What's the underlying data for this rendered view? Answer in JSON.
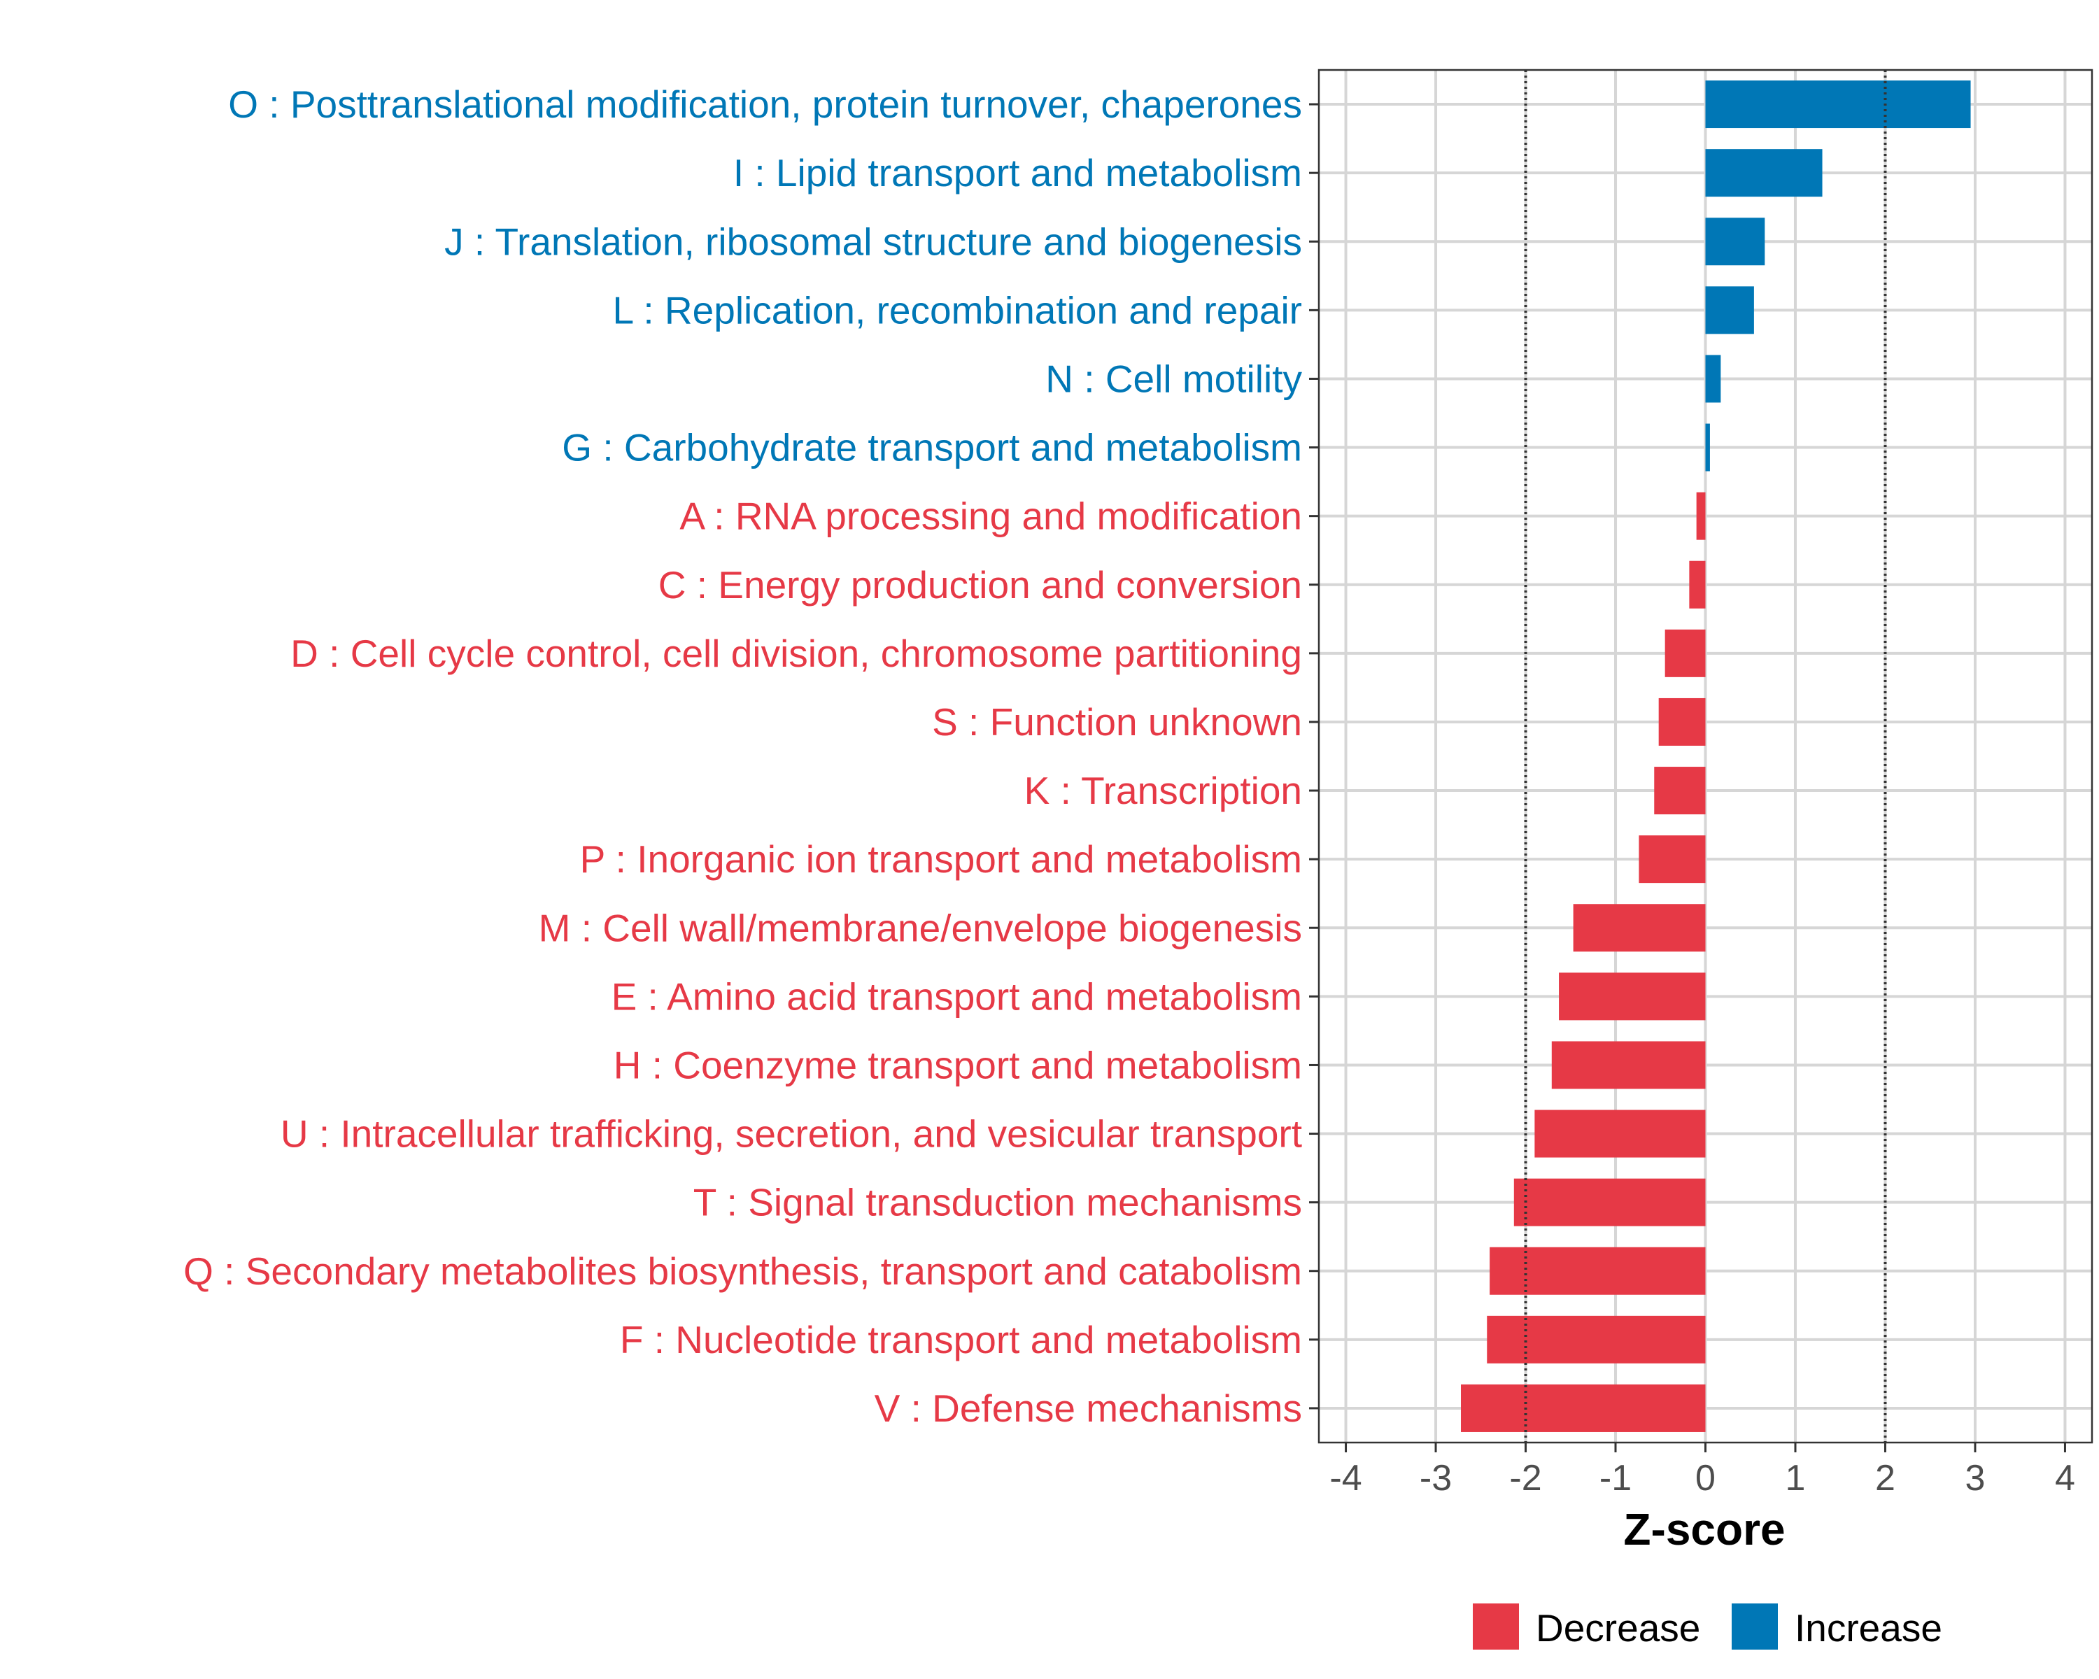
{
  "chart_data": {
    "type": "bar",
    "orientation": "horizontal",
    "title": "",
    "xlabel": "Z-score",
    "ylabel": "",
    "xlim": [
      -4.3,
      4.3
    ],
    "xticks": [
      -4,
      -3,
      -2,
      -1,
      0,
      1,
      2,
      3,
      4
    ],
    "reference_lines": [
      -2,
      2
    ],
    "grid": true,
    "legend_position": "bottom",
    "colors": {
      "Decrease": "#e63946",
      "Increase": "#0077b6"
    },
    "legend": [
      {
        "name": "Decrease",
        "color": "#e63946"
      },
      {
        "name": "Increase",
        "color": "#0077b6"
      }
    ],
    "categories": [
      "O : Posttranslational modification, protein turnover, chaperones",
      "I : Lipid transport and metabolism",
      "J : Translation, ribosomal structure and biogenesis",
      "L : Replication, recombination and repair",
      "N : Cell motility",
      "G : Carbohydrate transport and metabolism",
      "A : RNA processing and modification",
      "C : Energy production and conversion",
      "D : Cell cycle control, cell division, chromosome partitioning",
      "S : Function unknown",
      "K : Transcription",
      "P : Inorganic ion transport and metabolism",
      "M : Cell wall/membrane/envelope biogenesis",
      "E : Amino acid transport and metabolism",
      "H : Coenzyme transport and metabolism",
      "U : Intracellular trafficking, secretion, and vesicular transport",
      "T : Signal transduction mechanisms",
      "Q : Secondary metabolites biosynthesis, transport and catabolism",
      "F : Nucleotide transport and metabolism",
      "V : Defense mechanisms"
    ],
    "values": [
      2.95,
      1.3,
      0.66,
      0.54,
      0.17,
      0.05,
      -0.1,
      -0.18,
      -0.45,
      -0.52,
      -0.57,
      -0.74,
      -1.47,
      -1.63,
      -1.71,
      -1.9,
      -2.13,
      -2.4,
      -2.43,
      -2.72
    ],
    "groups": [
      "Increase",
      "Increase",
      "Increase",
      "Increase",
      "Increase",
      "Increase",
      "Decrease",
      "Decrease",
      "Decrease",
      "Decrease",
      "Decrease",
      "Decrease",
      "Decrease",
      "Decrease",
      "Decrease",
      "Decrease",
      "Decrease",
      "Decrease",
      "Decrease",
      "Decrease"
    ]
  }
}
